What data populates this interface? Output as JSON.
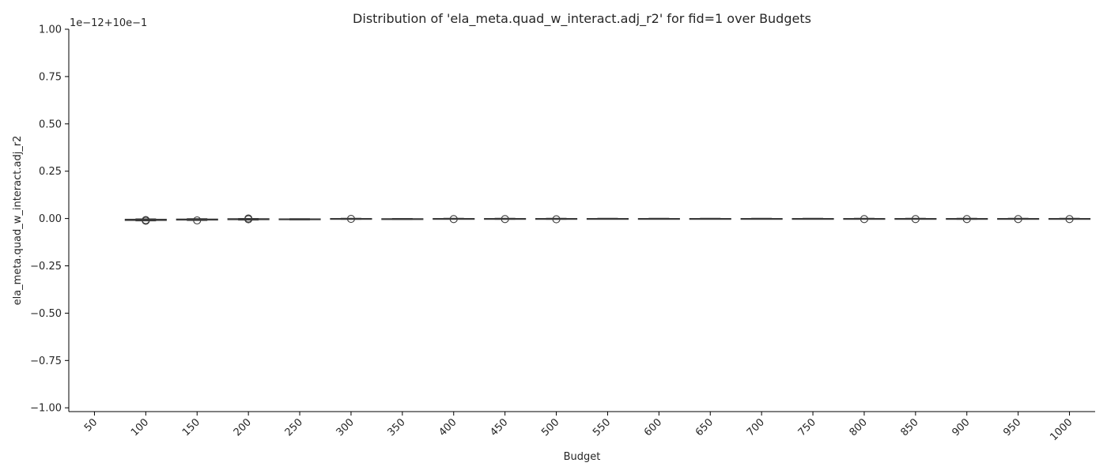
{
  "chart_data": {
    "type": "box",
    "title": "Distribution of 'ela_meta.quad_w_interact.adj_r2' for fid=1 over Budgets",
    "xlabel": "Budget",
    "ylabel": "ela_meta.quad_w_interact.adj_r2",
    "offset_label": "1e−12+10e−1",
    "yticks": [
      -1.0,
      -0.75,
      -0.5,
      -0.25,
      0.0,
      0.25,
      0.5,
      0.75,
      1.0
    ],
    "ytick_labels": [
      "−1.00",
      "−0.75",
      "−0.50",
      "−0.25",
      "0.00",
      "0.25",
      "0.50",
      "0.75",
      "1.00"
    ],
    "ylim": [
      -1.02,
      1.0
    ],
    "grid": false,
    "categories": [
      "50",
      "100",
      "150",
      "200",
      "250",
      "300",
      "350",
      "400",
      "450",
      "500",
      "550",
      "600",
      "650",
      "700",
      "750",
      "800",
      "850",
      "900",
      "950",
      "1000"
    ],
    "boxes": [
      null,
      {
        "q1": -0.01,
        "median": -0.007,
        "q3": -0.004,
        "whislo": -0.012,
        "whishi": -0.002,
        "outliers": [
          -0.008,
          -0.012
        ]
      },
      {
        "q1": -0.008,
        "median": -0.006,
        "q3": -0.003,
        "whislo": -0.01,
        "whishi": -0.001,
        "outliers": [
          -0.01
        ]
      },
      {
        "q1": -0.006,
        "median": -0.004,
        "q3": -0.001,
        "whislo": -0.008,
        "whishi": 0.0,
        "outliers": [
          0.0,
          -0.004
        ]
      },
      {
        "q1": -0.006,
        "median": -0.004,
        "q3": -0.002,
        "whislo": -0.007,
        "whishi": -0.001,
        "outliers": []
      },
      {
        "q1": -0.003,
        "median": -0.002,
        "q3": 0.0,
        "whislo": -0.004,
        "whishi": 0.001,
        "outliers": [
          -0.002
        ]
      },
      {
        "q1": -0.004,
        "median": -0.003,
        "q3": -0.001,
        "whislo": -0.005,
        "whishi": 0.0,
        "outliers": []
      },
      {
        "q1": -0.002,
        "median": -0.001,
        "q3": 0.0,
        "whislo": -0.003,
        "whishi": 0.001,
        "outliers": [
          -0.003
        ]
      },
      {
        "q1": -0.003,
        "median": -0.002,
        "q3": 0.0,
        "whislo": -0.004,
        "whishi": 0.001,
        "outliers": [
          -0.003
        ]
      },
      {
        "q1": -0.003,
        "median": -0.002,
        "q3": 0.0,
        "whislo": -0.004,
        "whishi": 0.001,
        "outliers": [
          -0.004
        ]
      },
      {
        "q1": -0.002,
        "median": -0.001,
        "q3": 0.0,
        "whislo": -0.003,
        "whishi": 0.001,
        "outliers": []
      },
      {
        "q1": -0.002,
        "median": -0.001,
        "q3": 0.0,
        "whislo": -0.003,
        "whishi": 0.001,
        "outliers": []
      },
      {
        "q1": -0.002,
        "median": -0.001,
        "q3": 0.0,
        "whislo": -0.003,
        "whishi": 0.001,
        "outliers": []
      },
      {
        "q1": -0.002,
        "median": -0.001,
        "q3": 0.0,
        "whislo": -0.003,
        "whishi": 0.001,
        "outliers": []
      },
      {
        "q1": -0.002,
        "median": -0.001,
        "q3": 0.0,
        "whislo": -0.003,
        "whishi": 0.001,
        "outliers": []
      },
      {
        "q1": -0.002,
        "median": -0.001,
        "q3": 0.0,
        "whislo": -0.003,
        "whishi": 0.001,
        "outliers": [
          -0.003
        ]
      },
      {
        "q1": -0.002,
        "median": -0.001,
        "q3": 0.0,
        "whislo": -0.003,
        "whishi": 0.001,
        "outliers": [
          -0.003
        ]
      },
      {
        "q1": -0.003,
        "median": -0.002,
        "q3": 0.0,
        "whislo": -0.004,
        "whishi": 0.001,
        "outliers": [
          -0.003
        ]
      },
      {
        "q1": -0.002,
        "median": -0.001,
        "q3": 0.0,
        "whislo": -0.003,
        "whishi": 0.001,
        "outliers": [
          -0.003
        ]
      },
      {
        "q1": -0.002,
        "median": -0.001,
        "q3": 0.0,
        "whislo": -0.003,
        "whishi": 0.001,
        "outliers": [
          -0.003
        ]
      }
    ],
    "colors": {
      "box_fill": "#ffffff",
      "line": "#3a3a3a",
      "axis": "#000000",
      "text": "#262626"
    }
  }
}
